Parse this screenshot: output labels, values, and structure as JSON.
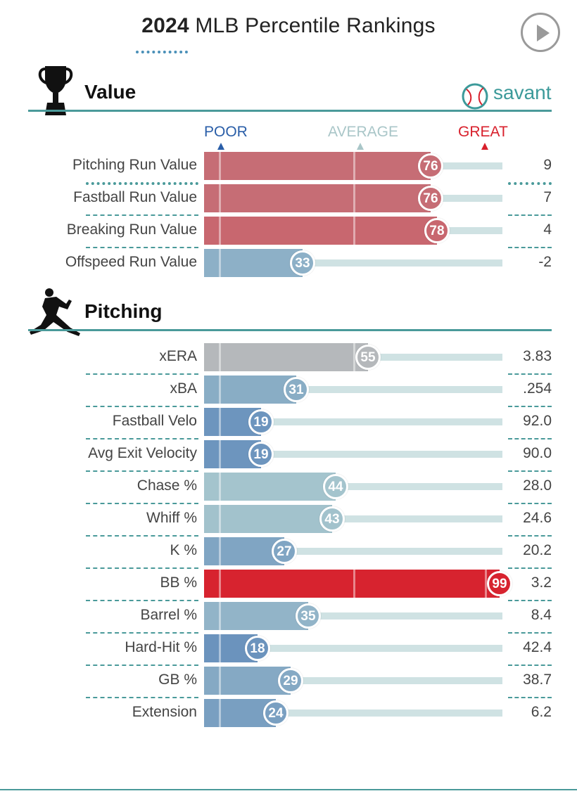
{
  "title": {
    "year": "2024",
    "rest": "MLB Percentile Rankings"
  },
  "icons": {
    "play": "play-icon",
    "trophy": "trophy-icon",
    "pitcher": "pitcher-silhouette-icon",
    "savant_logo": "baseball-icon"
  },
  "brand": "savant",
  "colors": {
    "accent": "#4a9a9a",
    "poor": "#2a5ea8",
    "average": "#a9c6c8",
    "great": "#d8202c"
  },
  "axis": {
    "poor": "POOR",
    "average": "AVERAGE",
    "great": "GREAT"
  },
  "chart_data": [
    {
      "type": "bar",
      "title": "Value",
      "xlim": [
        0,
        100
      ],
      "categories": [
        "Pitching Run Value",
        "Fastball Run Value",
        "Breaking Run Value",
        "Offspeed Run Value"
      ],
      "percentiles": [
        76,
        76,
        78,
        33
      ],
      "values": [
        "9",
        "7",
        "4",
        "-2"
      ]
    },
    {
      "type": "bar",
      "title": "Pitching",
      "xlim": [
        0,
        100
      ],
      "categories": [
        "xERA",
        "xBA",
        "Fastball Velo",
        "Avg Exit Velocity",
        "Chase %",
        "Whiff %",
        "K %",
        "BB %",
        "Barrel %",
        "Hard-Hit %",
        "GB %",
        "Extension"
      ],
      "percentiles": [
        55,
        31,
        19,
        19,
        44,
        43,
        27,
        99,
        35,
        18,
        29,
        24
      ],
      "values": [
        "3.83",
        ".254",
        "92.0",
        "90.0",
        "28.0",
        "24.6",
        "20.2",
        "3.2",
        "8.4",
        "42.4",
        "38.7",
        "6.2"
      ]
    }
  ]
}
